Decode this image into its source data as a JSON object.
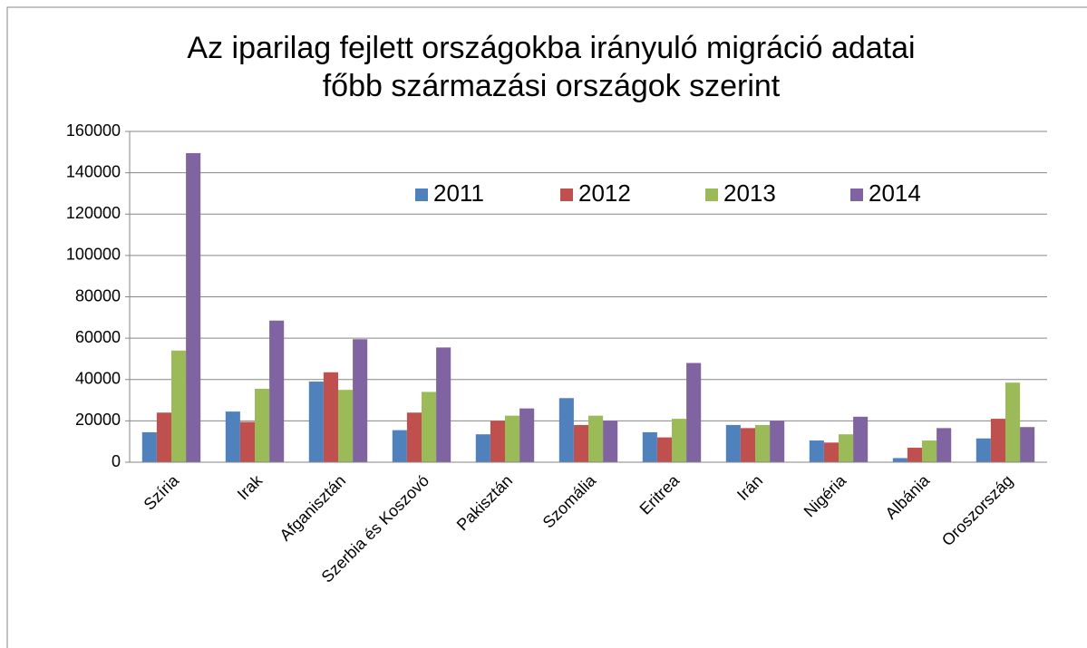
{
  "chart_data": {
    "type": "bar",
    "title": [
      "Az iparilag fejlett országokba irányuló migráció adatai",
      "főbb származási országok szerint"
    ],
    "categories": [
      "Szíria",
      "Irak",
      "Afganisztán",
      "Szerbia és Koszovó",
      "Pakisztán",
      "Szomália",
      "Eritrea",
      "Irán",
      "Nigéria",
      "Albánia",
      "Oroszország"
    ],
    "series": [
      {
        "name": "2011",
        "color": "#4f81bd",
        "values": [
          14500,
          24500,
          39000,
          15500,
          13500,
          31000,
          14500,
          18000,
          10500,
          2000,
          11500
        ]
      },
      {
        "name": "2012",
        "color": "#c0504d",
        "values": [
          24000,
          19500,
          43500,
          24000,
          20000,
          18000,
          12000,
          16500,
          9500,
          7000,
          21000
        ]
      },
      {
        "name": "2013",
        "color": "#9bbb59",
        "values": [
          54000,
          35500,
          35000,
          34000,
          22500,
          22500,
          21000,
          18000,
          13500,
          10500,
          38500
        ]
      },
      {
        "name": "2014",
        "color": "#8064a2",
        "values": [
          149500,
          68500,
          59500,
          55500,
          26000,
          20000,
          48000,
          20000,
          22000,
          16500,
          17000
        ]
      }
    ],
    "ylim": [
      0,
      160000
    ],
    "yticks": [
      0,
      20000,
      40000,
      60000,
      80000,
      100000,
      120000,
      140000,
      160000
    ],
    "grid": true,
    "legend": "top"
  }
}
